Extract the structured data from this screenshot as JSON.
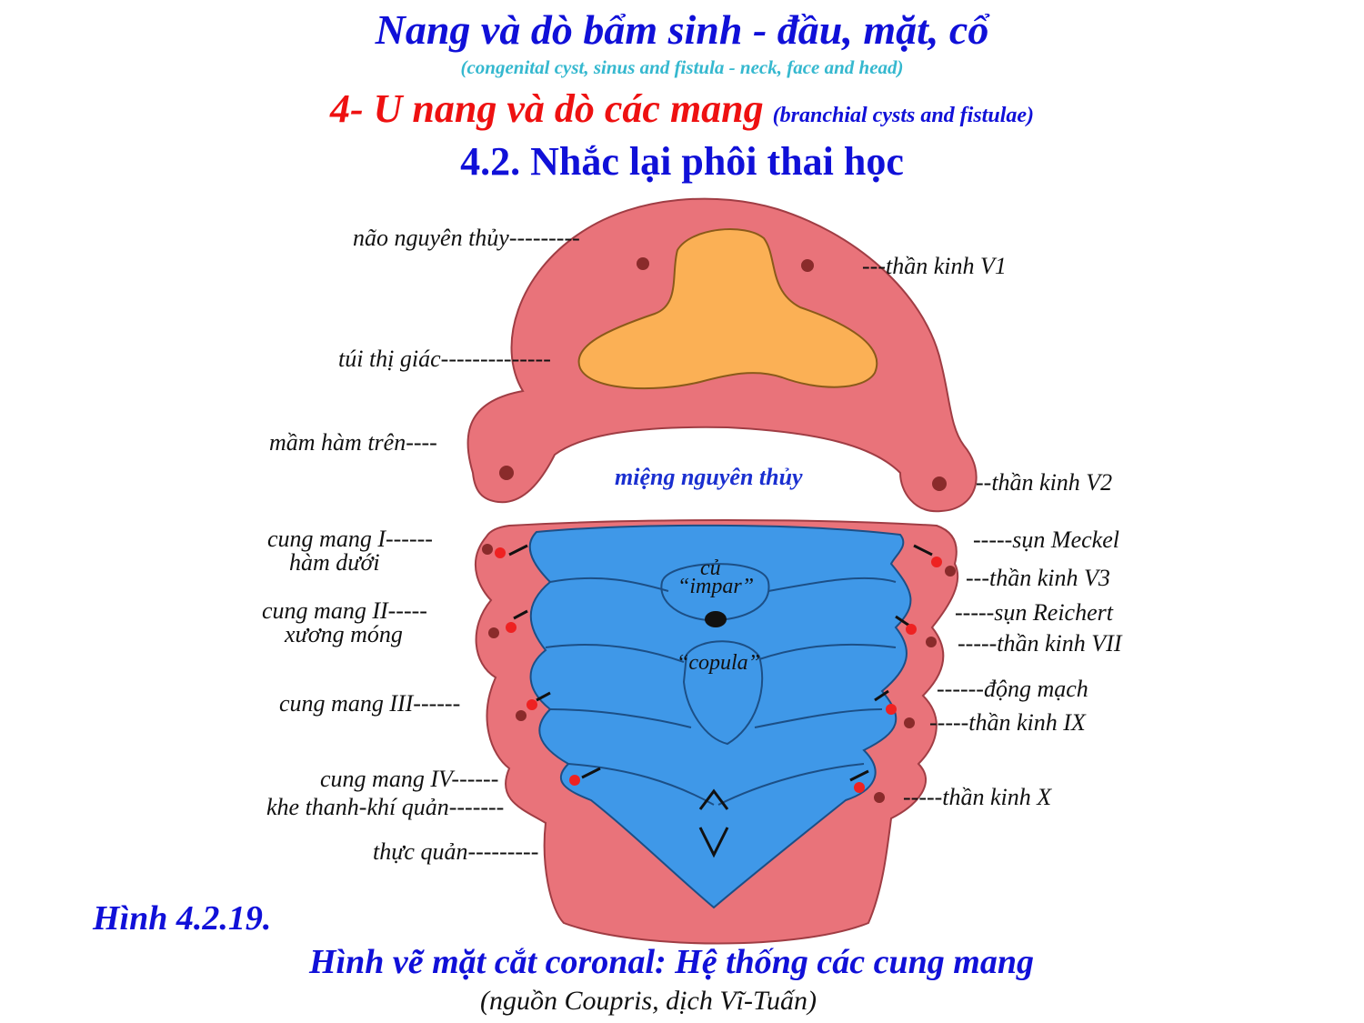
{
  "header": {
    "title": "Nang và dò bẩm sinh - đầu, mặt, cổ",
    "subtitle": "(congenital cyst, sinus and fistula - neck, face and head)",
    "section": "4- U nang và dò các mang",
    "section_en": "(branchial cysts and fistulae)",
    "subsection": "4.2. Nhắc lại phôi thai học"
  },
  "labels": {
    "nao_nguyen_thuy": "não nguyên thủy---------",
    "than_kinh_v1": "---thần kinh V1",
    "tui_thi_giac": "túi thị giác--------------",
    "mam_ham_tren": "mầm hàm trên----",
    "mieng_nguyen_thuy": "miệng nguyên thủy",
    "than_kinh_v2": "--thần kinh V2",
    "cung_mang_1": "cung mang I------",
    "ham_duoi": "hàm dưới",
    "cung_mang_2": "cung mang II-----",
    "xuong_mong": "xương móng",
    "cung_mang_3": "cung mang III------",
    "cung_mang_4": "cung mang IV------",
    "khe_thanh_khi_quan": "khe thanh-khí quản-------",
    "thuc_quan": "thực quản---------",
    "cu": "củ",
    "impar": "“impar”",
    "copula": "“copula”",
    "sun_meckel": "-----sụn Meckel",
    "than_kinh_v3": "---thần kinh V3",
    "sun_reichert": "-----sụn Reichert",
    "than_kinh_vii": "-----thần kinh VII",
    "dong_mach": "------động mạch",
    "than_kinh_ix": "-----thần kinh IX",
    "than_kinh_x": "-----thần kinh X"
  },
  "figure": {
    "number": "Hình 4.2.19.",
    "caption": "Hình vẽ mặt cắt coronal: Hệ thống các cung mang",
    "source": "(nguồn Coupris, dịch Vĩ-Tuấn)"
  },
  "colors": {
    "title_blue": "#1010d8",
    "subtitle_cyan": "#35b8cf",
    "section_red": "#ee1111",
    "tissue_pink": "#e9737a",
    "brain_orange": "#fbb055",
    "pharynx_blue": "#3f98e8",
    "vessel_red": "#ee2222",
    "nerve_dark": "#8a2b2b"
  }
}
